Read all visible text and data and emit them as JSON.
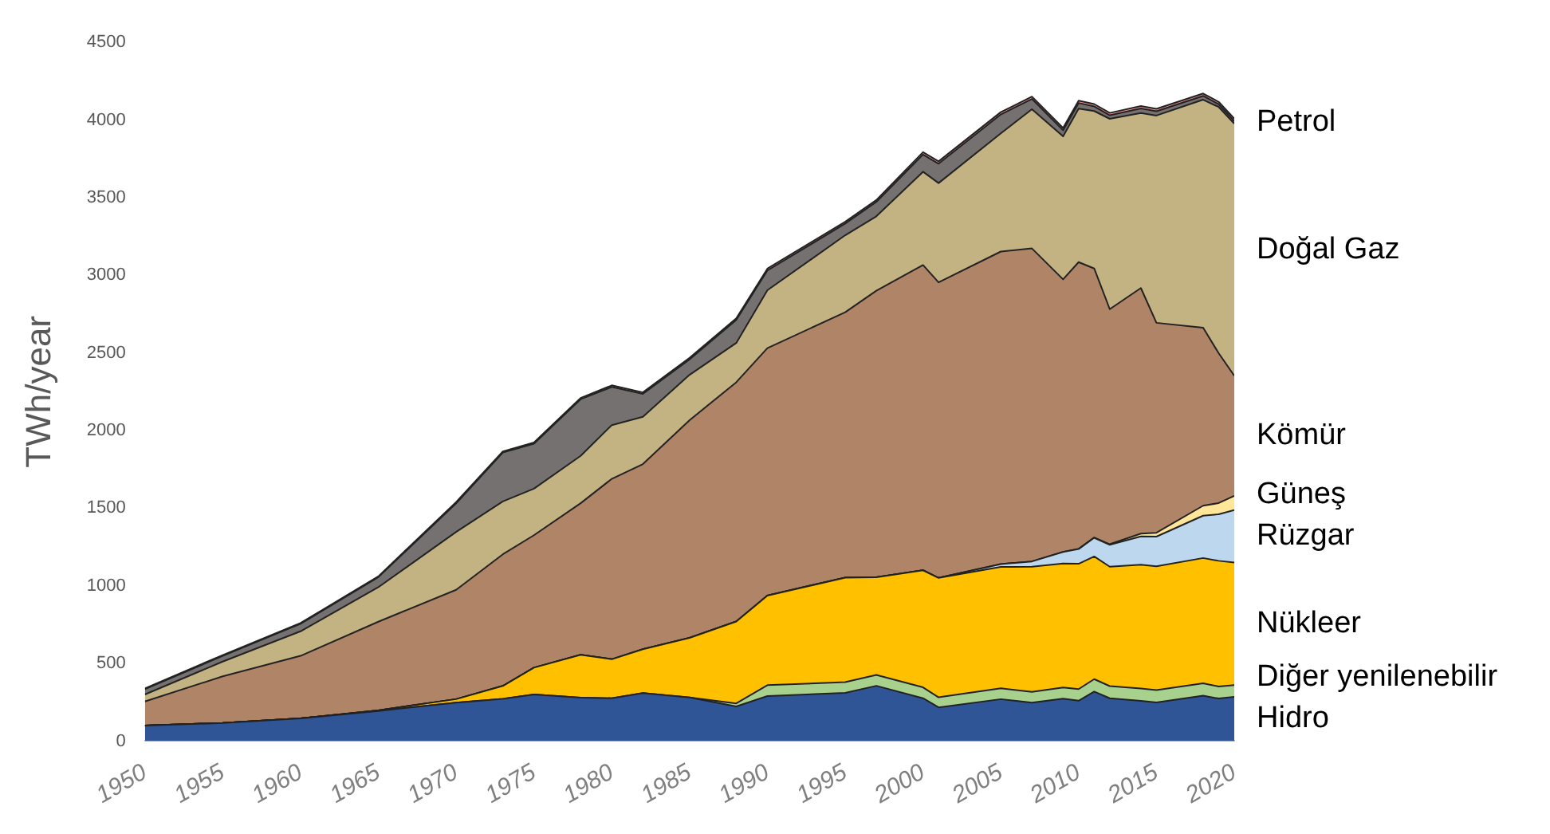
{
  "chart_data": {
    "type": "area",
    "stacked": true,
    "ylabel": "TWh/year",
    "legend": false,
    "grid": false,
    "x": [
      1950,
      1955,
      1960,
      1965,
      1970,
      1973,
      1975,
      1978,
      1980,
      1982,
      1985,
      1988,
      1990,
      1995,
      1997,
      2000,
      2001,
      2005,
      2007,
      2009,
      2010,
      2011,
      2012,
      2014,
      2015,
      2018,
      2019,
      2020
    ],
    "xlim": [
      1950,
      2020
    ],
    "xticks": [
      1950,
      1955,
      1960,
      1965,
      1970,
      1975,
      1980,
      1985,
      1990,
      1995,
      2000,
      2005,
      2010,
      2015,
      2020
    ],
    "ylim": [
      0,
      4500
    ],
    "yticks": [
      0,
      500,
      1000,
      1500,
      2000,
      2500,
      3000,
      3500,
      4000,
      4500
    ],
    "series": [
      {
        "name": "Hidro",
        "color": "#2f5597",
        "values": [
          100,
          116,
          146,
          194,
          248,
          272,
          300,
          280,
          276,
          309,
          281,
          223,
          290,
          310,
          356,
          276,
          217,
          270,
          247,
          273,
          260,
          319,
          276,
          259,
          249,
          292,
          274,
          285
        ]
      },
      {
        "name": "Diğer yenilenebilir",
        "color": "#a9d18e",
        "values": [
          0,
          0,
          0,
          0,
          0,
          0,
          0,
          0,
          0,
          0,
          0,
          20,
          70,
          70,
          70,
          70,
          65,
          70,
          70,
          72,
          75,
          80,
          78,
          80,
          80,
          80,
          78,
          75
        ]
      },
      {
        "name": "Nükleer",
        "color": "#ffc000",
        "values": [
          0,
          0,
          0,
          4,
          22,
          83,
          173,
          276,
          251,
          283,
          384,
          527,
          577,
          673,
          629,
          754,
          769,
          782,
          806,
          799,
          807,
          790,
          769,
          797,
          797,
          807,
          809,
          790
        ]
      },
      {
        "name": "Rüzgar",
        "color": "#bdd7ee",
        "values": [
          0,
          0,
          0,
          0,
          0,
          0,
          0,
          0,
          0,
          0,
          0,
          0,
          0,
          0,
          0,
          0,
          0,
          18,
          34,
          74,
          95,
          120,
          141,
          182,
          191,
          273,
          300,
          338
        ]
      },
      {
        "name": "Güneş",
        "color": "#ffe699",
        "values": [
          0,
          0,
          0,
          0,
          0,
          0,
          0,
          0,
          0,
          0,
          0,
          0,
          0,
          0,
          0,
          0,
          0,
          0,
          0,
          0,
          1,
          2,
          4,
          18,
          25,
          64,
          72,
          91
        ]
      },
      {
        "name": "Kömür",
        "color": "#b08467",
        "values": [
          155,
          301,
          403,
          571,
          704,
          848,
          853,
          976,
          1162,
          1192,
          1402,
          1541,
          1594,
          1709,
          1846,
          1966,
          1904,
          2013,
          2016,
          1756,
          1847,
          1733,
          1514,
          1582,
          1352,
          1146,
          965,
          774
        ]
      },
      {
        "name": "Doğal Gaz",
        "color": "#c3b383",
        "values": [
          45,
          95,
          158,
          222,
          373,
          341,
          300,
          305,
          346,
          305,
          292,
          253,
          373,
          496,
          479,
          601,
          639,
          761,
          897,
          921,
          988,
          1014,
          1226,
          1127,
          1335,
          1469,
          1586,
          1624
        ]
      },
      {
        "name": "Petrol",
        "color": "#767171",
        "values": [
          34,
          37,
          48,
          65,
          184,
          314,
          289,
          365,
          246,
          147,
          100,
          149,
          127,
          75,
          93,
          111,
          125,
          122,
          66,
          39,
          37,
          30,
          23,
          30,
          28,
          25,
          18,
          17
        ]
      },
      {
        "color": "#ff9999",
        "values": [
          5,
          5,
          5,
          5,
          8,
          8,
          8,
          8,
          10,
          10,
          10,
          10,
          12,
          12,
          12,
          15,
          15,
          15,
          15,
          15,
          15,
          15,
          15,
          15,
          15,
          15,
          15,
          15
        ]
      }
    ]
  }
}
